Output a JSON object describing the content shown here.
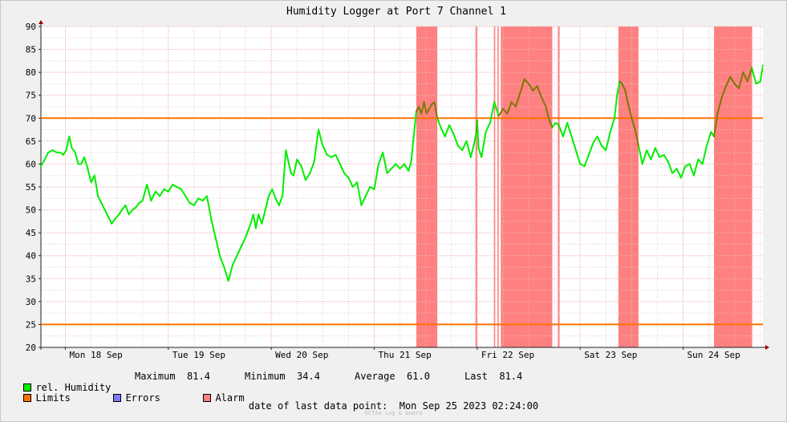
{
  "chart_data": {
    "type": "line",
    "title": "Humidity Logger at Port 7 Channel 1",
    "xlabel": "",
    "ylabel": "",
    "ylim": [
      20,
      90
    ],
    "yticks": [
      20,
      25,
      30,
      35,
      40,
      45,
      50,
      55,
      60,
      65,
      70,
      75,
      80,
      85,
      90
    ],
    "x_unit": "hours since Mon 18 Sep 00:00",
    "xlim": [
      -5.7,
      162.6
    ],
    "day_ticks": [
      {
        "label": "Mon 18 Sep",
        "x": 0
      },
      {
        "label": "Tue 19 Sep",
        "x": 24
      },
      {
        "label": "Wed 20 Sep",
        "x": 48
      },
      {
        "label": "Thu 21 Sep",
        "x": 72
      },
      {
        "label": "Fri 22 Sep",
        "x": 96
      },
      {
        "label": "Sat 23 Sep",
        "x": 120
      },
      {
        "label": "Sun 24 Sep",
        "x": 144
      }
    ],
    "limits": [
      25,
      70
    ],
    "alarm_intervals": [
      [
        81.8,
        86.7
      ],
      [
        95.6,
        96.0
      ],
      [
        99.9,
        100.2
      ],
      [
        100.7,
        101.0
      ],
      [
        101.5,
        113.5
      ],
      [
        114.8,
        115.2
      ],
      [
        128.9,
        133.6
      ],
      [
        151.2,
        160.1
      ]
    ],
    "series": [
      {
        "name": "rel. Humidity",
        "color": "#00ee00",
        "alarm_color": "#7f7700",
        "x": [
          -5.7,
          -4.8,
          -4.0,
          -3.0,
          -2.0,
          -1.2,
          -0.5,
          0.2,
          0.9,
          1.5,
          2.3,
          3.0,
          3.7,
          4.4,
          5.2,
          6.0,
          6.8,
          7.6,
          8.4,
          9.2,
          10.0,
          10.8,
          11.6,
          12.5,
          13.2,
          14.0,
          14.8,
          15.6,
          16.4,
          17.2,
          18.0,
          19.0,
          20.0,
          21.0,
          22.0,
          23.0,
          24.0,
          25.0,
          26.0,
          27.0,
          28.0,
          29.0,
          30.0,
          31.0,
          32.0,
          33.0,
          34.0,
          35.0,
          36.0,
          37.0,
          38.0,
          39.0,
          40.0,
          41.0,
          42.0,
          42.6,
          43.2,
          43.8,
          44.4,
          45.0,
          45.8,
          46.6,
          47.4,
          48.2,
          49.0,
          49.8,
          50.6,
          51.4,
          52.0,
          52.6,
          53.2,
          54.0,
          55.0,
          56.0,
          57.0,
          58.0,
          59.0,
          60.0,
          61.0,
          62.0,
          63.0,
          64.0,
          65.0,
          66.0,
          67.0,
          68.0,
          69.0,
          70.0,
          71.0,
          72.0,
          73.0,
          74.0,
          75.0,
          76.0,
          77.0,
          78.0,
          79.0,
          80.0,
          80.6,
          81.2,
          81.8,
          82.4,
          83.0,
          83.6,
          84.2,
          84.8,
          85.4,
          86.0,
          86.7,
          87.5,
          88.5,
          89.5,
          90.5,
          91.5,
          92.5,
          93.5,
          94.5,
          95.3,
          95.8,
          96.0,
          96.3,
          97.0,
          98.0,
          99.0,
          100.0,
          101.0,
          102.0,
          103.0,
          104.0,
          105.0,
          106.0,
          107.0,
          108.0,
          109.0,
          110.0,
          111.0,
          112.0,
          112.8,
          113.5,
          114.2,
          115.0,
          116.0,
          117.0,
          118.0,
          119.0,
          120.0,
          121.0,
          122.0,
          123.0,
          124.0,
          125.0,
          126.0,
          127.0,
          128.0,
          128.6,
          129.2,
          129.8,
          130.5,
          131.2,
          132.0,
          132.8,
          133.6,
          134.5,
          135.5,
          136.5,
          137.5,
          138.5,
          139.5,
          140.5,
          141.5,
          142.5,
          143.5,
          144.5,
          145.5,
          146.5,
          147.5,
          148.5,
          149.5,
          150.5,
          151.2,
          152.0,
          153.0,
          154.0,
          155.0,
          156.0,
          157.0,
          158.0,
          159.0,
          160.0,
          161.0,
          162.0,
          162.6
        ],
        "values": [
          59.5,
          61.0,
          62.5,
          63.0,
          62.5,
          62.5,
          62.0,
          63.0,
          66.0,
          63.5,
          62.5,
          60.0,
          60.0,
          61.5,
          59.0,
          56.0,
          57.5,
          53.0,
          51.5,
          50.0,
          48.5,
          47.0,
          48.0,
          49.0,
          50.0,
          51.0,
          49.0,
          50.0,
          50.5,
          51.5,
          52.0,
          55.5,
          52.0,
          54.0,
          53.0,
          54.5,
          54.0,
          55.5,
          55.0,
          54.5,
          53.0,
          51.5,
          51.0,
          52.5,
          52.0,
          53.0,
          48.0,
          44.0,
          40.0,
          37.5,
          34.5,
          38.0,
          40.0,
          42.0,
          44.0,
          45.5,
          47.0,
          49.0,
          46.0,
          49.0,
          47.0,
          50.0,
          53.0,
          54.5,
          52.5,
          51.0,
          53.0,
          63.0,
          60.5,
          58.0,
          57.5,
          61.0,
          59.5,
          56.5,
          58.0,
          60.5,
          67.5,
          64.0,
          62.0,
          61.5,
          62.0,
          60.0,
          58.0,
          57.0,
          55.0,
          56.0,
          51.0,
          53.0,
          55.0,
          54.5,
          60.0,
          62.5,
          58.0,
          59.0,
          60.0,
          59.0,
          60.0,
          58.5,
          60.5,
          66.0,
          71.5,
          72.5,
          71.0,
          73.5,
          71.0,
          72.0,
          73.0,
          73.5,
          70.0,
          68.0,
          66.0,
          68.5,
          66.5,
          64.0,
          63.0,
          65.0,
          61.5,
          64.5,
          67.0,
          69.5,
          63.5,
          61.5,
          67.0,
          69.0,
          73.5,
          70.5,
          72.0,
          71.0,
          73.5,
          72.5,
          75.5,
          78.5,
          77.5,
          76.0,
          77.0,
          74.5,
          72.5,
          69.5,
          68.0,
          69.0,
          68.5,
          66.0,
          69.0,
          66.0,
          63.0,
          60.0,
          59.5,
          62.0,
          64.5,
          66.0,
          64.0,
          63.0,
          67.0,
          70.0,
          75.0,
          78.0,
          77.5,
          76.0,
          73.0,
          70.0,
          67.5,
          64.0,
          60.0,
          63.0,
          61.0,
          63.5,
          61.5,
          62.0,
          60.5,
          58.0,
          59.0,
          57.0,
          59.5,
          60.0,
          57.5,
          61.0,
          60.0,
          64.0,
          67.0,
          66.0,
          71.0,
          74.5,
          77.0,
          79.0,
          77.5,
          76.5,
          80.0,
          78.0,
          81.0,
          77.5,
          78.0,
          81.5
        ]
      }
    ],
    "limits_color": "#ff7200",
    "alarm_band_color": "#ff8080",
    "legend": [
      {
        "label": "rel. Humidity",
        "color": "#00ee00"
      },
      {
        "label": "Limits",
        "color": "#ff7200"
      },
      {
        "label": "Errors",
        "color": "#7b7bff"
      },
      {
        "label": "Alarm",
        "color": "#ff8080"
      }
    ]
  },
  "stats": {
    "maximum": {
      "label": "Maximum",
      "value": "81.4"
    },
    "minimum": {
      "label": "Minimum",
      "value": "34.4"
    },
    "average": {
      "label": "Average",
      "value": "61.0"
    },
    "last": {
      "label": "Last",
      "value": "81.4"
    }
  },
  "last_data_point": {
    "label": "date of last data point:",
    "value": "Mon Sep 25 2023 02:24:00"
  },
  "watermark": "OCTA4 Log & Guard"
}
